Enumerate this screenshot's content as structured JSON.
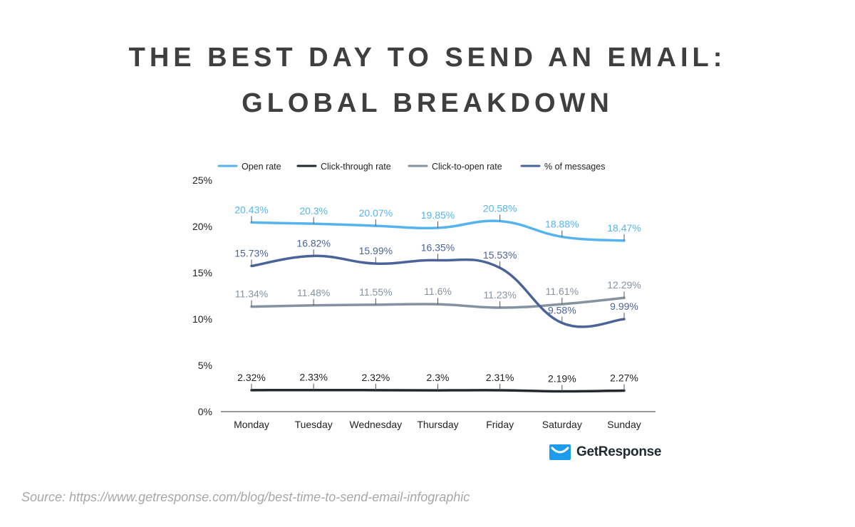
{
  "header": {
    "title_line1": "THE BEST DAY TO SEND AN EMAIL:",
    "title_line2": "GLOBAL BREAKDOWN"
  },
  "chart_data": {
    "type": "line",
    "categories": [
      "Monday",
      "Tuesday",
      "Wednesday",
      "Thursday",
      "Friday",
      "Saturday",
      "Sunday"
    ],
    "ylim": [
      0,
      25
    ],
    "yticks": [
      0,
      5,
      10,
      15,
      20,
      25
    ],
    "ytick_labels": [
      "0%",
      "5%",
      "10%",
      "15%",
      "20%",
      "25%"
    ],
    "legend_position": "top",
    "series": [
      {
        "name": "Open rate",
        "color": "#55b4ee",
        "values": [
          20.43,
          20.3,
          20.07,
          19.85,
          20.58,
          18.88,
          18.47
        ],
        "labels": [
          "20.43%",
          "20.3%",
          "20.07%",
          "19.85%",
          "20.58%",
          "18.88%",
          "18.47%"
        ]
      },
      {
        "name": "Click-through rate",
        "color": "#22282d",
        "values": [
          2.32,
          2.33,
          2.32,
          2.3,
          2.31,
          2.19,
          2.27
        ],
        "labels": [
          "2.32%",
          "2.33%",
          "2.32%",
          "2.3%",
          "2.31%",
          "2.19%",
          "2.27%"
        ]
      },
      {
        "name": "Click-to-open rate",
        "color": "#8592a0",
        "values": [
          11.34,
          11.48,
          11.55,
          11.6,
          11.23,
          11.61,
          12.29
        ],
        "labels": [
          "11.34%",
          "11.48%",
          "11.55%",
          "11.6%",
          "11.23%",
          "11.61%",
          "12.29%"
        ]
      },
      {
        "name": "% of messages",
        "color": "#4a6399",
        "values": [
          15.73,
          16.82,
          15.99,
          16.35,
          15.53,
          9.58,
          9.99
        ],
        "labels": [
          "15.73%",
          "16.82%",
          "15.99%",
          "16.35%",
          "15.53%",
          "9.58%",
          "9.99%"
        ]
      }
    ]
  },
  "brand": {
    "name": "GetResponse",
    "color": "#1c9bef"
  },
  "footer": {
    "source": "Source: https://www.getresponse.com/blog/best-time-to-send-email-infographic"
  }
}
